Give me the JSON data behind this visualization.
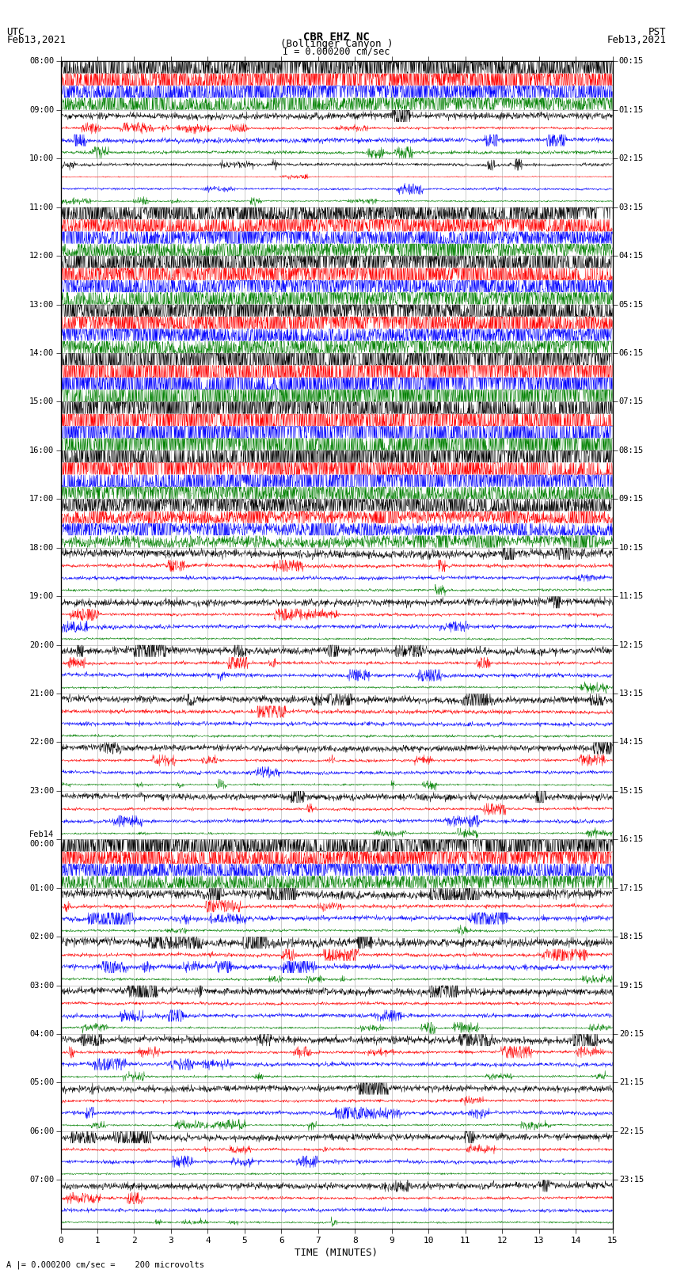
{
  "title_line1": "CBR EHZ NC",
  "title_line2": "(Bollinger Canyon )",
  "scale_label": "I = 0.000200 cm/sec",
  "bottom_label": "A |= 0.000200 cm/sec =    200 microvolts",
  "xlabel": "TIME (MINUTES)",
  "utc_label": "UTC\nFeb13,2021",
  "pst_label": "PST\nFeb13,2021",
  "left_times": [
    "08:00",
    "09:00",
    "10:00",
    "11:00",
    "12:00",
    "13:00",
    "14:00",
    "15:00",
    "16:00",
    "17:00",
    "18:00",
    "19:00",
    "20:00",
    "21:00",
    "22:00",
    "23:00",
    "Feb14\n00:00",
    "01:00",
    "02:00",
    "03:00",
    "04:00",
    "05:00",
    "06:00",
    "07:00"
  ],
  "right_times": [
    "00:15",
    "01:15",
    "02:15",
    "03:15",
    "04:15",
    "05:15",
    "06:15",
    "07:15",
    "08:15",
    "09:15",
    "10:15",
    "11:15",
    "12:15",
    "13:15",
    "14:15",
    "15:15",
    "16:15",
    "17:15",
    "18:15",
    "19:15",
    "20:15",
    "21:15",
    "22:15",
    "23:15"
  ],
  "colors": [
    "black",
    "red",
    "blue",
    "green"
  ],
  "n_rows": 24,
  "traces_per_row": 4,
  "minutes_per_row": 15,
  "bg_color": "white",
  "grid_color": "#aaaaaa",
  "figsize": [
    8.5,
    16.13
  ],
  "dpi": 100,
  "row_amplitudes": [
    0.35,
    0.08,
    0.05,
    0.25,
    0.3,
    0.28,
    0.55,
    0.65,
    0.6,
    0.45,
    0.12,
    0.1,
    0.1,
    0.1,
    0.09,
    0.09,
    0.45,
    0.12,
    0.12,
    0.1,
    0.1,
    0.09,
    0.09,
    0.09
  ],
  "trace_amplitudes": {
    "0": [
      1.0,
      0.9,
      0.7,
      0.4
    ],
    "1": [
      0.4,
      0.15,
      0.3,
      0.2
    ],
    "2": [
      0.3,
      0.1,
      0.2,
      0.15
    ],
    "3": [
      0.8,
      0.7,
      0.6,
      0.5
    ],
    "4": [
      0.9,
      0.8,
      0.7,
      0.6
    ],
    "5": [
      0.85,
      0.75,
      0.65,
      0.55
    ],
    "6": [
      1.0,
      1.0,
      1.0,
      1.0
    ],
    "7": [
      1.0,
      1.0,
      1.0,
      1.0
    ],
    "8": [
      1.0,
      0.6,
      0.5,
      0.3
    ],
    "9": [
      0.5,
      0.2,
      0.2,
      0.15
    ],
    "10": [
      0.35,
      0.15,
      0.15,
      0.1
    ],
    "11": [
      0.35,
      0.15,
      0.2,
      0.1
    ],
    "12": [
      0.35,
      0.15,
      0.2,
      0.1
    ],
    "13": [
      0.35,
      0.2,
      0.2,
      0.12
    ],
    "14": [
      0.35,
      0.15,
      0.2,
      0.1
    ],
    "15": [
      0.35,
      0.15,
      0.2,
      0.1
    ],
    "16": [
      0.8,
      0.5,
      0.4,
      0.3
    ],
    "17": [
      0.35,
      0.15,
      0.2,
      0.1
    ],
    "18": [
      0.35,
      0.15,
      0.2,
      0.1
    ],
    "19": [
      0.35,
      0.15,
      0.2,
      0.1
    ],
    "20": [
      0.35,
      0.15,
      0.2,
      0.1
    ],
    "21": [
      0.35,
      0.15,
      0.2,
      0.1
    ],
    "22": [
      0.35,
      0.15,
      0.2,
      0.1
    ],
    "23": [
      0.35,
      0.15,
      0.2,
      0.1
    ]
  }
}
